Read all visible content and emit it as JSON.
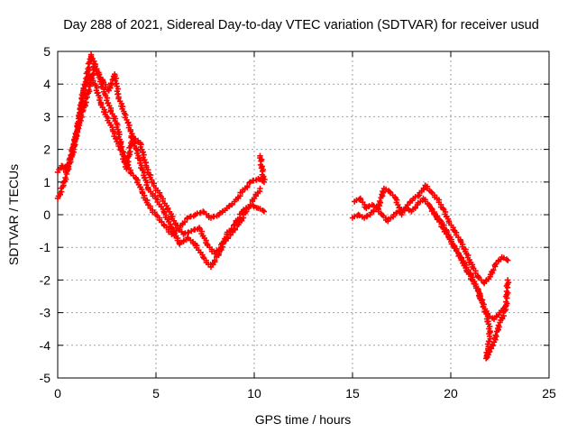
{
  "chart_data": {
    "type": "scatter",
    "title": "Day 288 of 2021, Sidereal Day-to-day VTEC variation (SDTVAR) for receiver usud",
    "xlabel": "GPS time / hours",
    "ylabel": "SDTVAR / TECUs",
    "xlim": [
      0,
      25
    ],
    "ylim": [
      -5,
      5
    ],
    "xticks": [
      0,
      5,
      10,
      15,
      20,
      25
    ],
    "yticks": [
      -5,
      -4,
      -3,
      -2,
      -1,
      0,
      1,
      2,
      3,
      4,
      5
    ],
    "grid": true,
    "marker": "plus",
    "series_color": "#ff0000",
    "series": [
      {
        "name": "track-a",
        "points": [
          [
            0.0,
            0.5
          ],
          [
            0.3,
            0.9
          ],
          [
            0.6,
            1.6
          ],
          [
            0.9,
            2.3
          ],
          [
            1.1,
            2.8
          ],
          [
            1.3,
            3.2
          ],
          [
            1.5,
            3.6
          ],
          [
            1.7,
            4.1
          ],
          [
            1.9,
            4.6
          ],
          [
            2.1,
            4.2
          ],
          [
            2.4,
            3.7
          ],
          [
            2.7,
            3.2
          ],
          [
            3.0,
            2.8
          ],
          [
            3.2,
            2.2
          ],
          [
            3.4,
            1.6
          ],
          [
            3.5,
            1.4
          ],
          [
            3.8,
            2.4
          ],
          [
            4.2,
            2.2
          ],
          [
            4.5,
            1.5
          ],
          [
            4.8,
            1.0
          ],
          [
            5.2,
            0.6
          ],
          [
            5.6,
            0.2
          ],
          [
            6.0,
            -0.3
          ],
          [
            6.4,
            -0.6
          ],
          [
            6.8,
            -0.5
          ],
          [
            7.2,
            -0.4
          ],
          [
            7.6,
            -0.9
          ],
          [
            8.0,
            -1.2
          ],
          [
            8.4,
            -0.9
          ],
          [
            8.8,
            -0.6
          ],
          [
            9.2,
            -0.3
          ],
          [
            9.6,
            0.1
          ],
          [
            10.0,
            0.5
          ],
          [
            10.3,
            0.8
          ]
        ]
      },
      {
        "name": "track-b",
        "points": [
          [
            0.0,
            1.3
          ],
          [
            0.2,
            1.5
          ],
          [
            0.5,
            1.4
          ],
          [
            0.8,
            2.0
          ],
          [
            1.1,
            3.0
          ],
          [
            1.4,
            4.0
          ],
          [
            1.7,
            4.9
          ],
          [
            2.0,
            4.4
          ],
          [
            2.3,
            4.1
          ],
          [
            2.6,
            3.8
          ],
          [
            2.9,
            4.3
          ],
          [
            3.1,
            3.6
          ],
          [
            3.4,
            3.1
          ],
          [
            3.7,
            2.6
          ],
          [
            4.0,
            2.0
          ],
          [
            4.3,
            1.4
          ],
          [
            4.6,
            0.8
          ],
          [
            5.0,
            0.5
          ],
          [
            5.4,
            0.1
          ],
          [
            5.8,
            -0.4
          ],
          [
            6.2,
            -0.9
          ],
          [
            6.6,
            -0.7
          ],
          [
            7.0,
            -0.9
          ],
          [
            7.4,
            -1.3
          ],
          [
            7.8,
            -1.6
          ],
          [
            8.2,
            -1.2
          ],
          [
            8.6,
            -0.6
          ],
          [
            9.0,
            -0.3
          ],
          [
            9.4,
            0.1
          ],
          [
            9.8,
            0.3
          ],
          [
            10.2,
            0.2
          ],
          [
            10.5,
            0.1
          ]
        ]
      },
      {
        "name": "track-c",
        "points": [
          [
            0.3,
            1.4
          ],
          [
            0.6,
            1.6
          ],
          [
            1.0,
            2.6
          ],
          [
            1.3,
            3.8
          ],
          [
            1.6,
            4.3
          ],
          [
            1.9,
            4.0
          ],
          [
            2.2,
            3.4
          ],
          [
            2.5,
            3.0
          ],
          [
            2.8,
            2.6
          ],
          [
            3.1,
            2.1
          ],
          [
            3.4,
            1.8
          ],
          [
            3.7,
            1.3
          ],
          [
            4.0,
            1.1
          ],
          [
            4.3,
            0.7
          ],
          [
            4.6,
            0.3
          ],
          [
            5.0,
            0.0
          ],
          [
            5.4,
            -0.3
          ],
          [
            5.8,
            -0.6
          ],
          [
            6.2,
            -0.4
          ],
          [
            6.6,
            -0.1
          ],
          [
            7.0,
            0.0
          ],
          [
            7.4,
            0.1
          ],
          [
            7.8,
            -0.1
          ],
          [
            8.2,
            0.0
          ],
          [
            8.6,
            0.2
          ],
          [
            9.0,
            0.4
          ],
          [
            9.4,
            0.7
          ],
          [
            9.8,
            1.0
          ],
          [
            10.2,
            1.1
          ],
          [
            10.5,
            1.0
          ],
          [
            10.3,
            1.8
          ]
        ]
      },
      {
        "name": "track-d",
        "points": [
          [
            15.1,
            0.4
          ],
          [
            15.4,
            0.5
          ],
          [
            15.7,
            0.2
          ],
          [
            16.0,
            0.3
          ],
          [
            16.3,
            0.2
          ],
          [
            16.6,
            0.8
          ],
          [
            16.9,
            0.7
          ],
          [
            17.2,
            0.5
          ],
          [
            17.5,
            0.0
          ],
          [
            17.8,
            0.3
          ],
          [
            18.1,
            0.5
          ],
          [
            18.4,
            0.6
          ],
          [
            18.7,
            0.9
          ],
          [
            19.0,
            0.7
          ],
          [
            19.3,
            0.5
          ],
          [
            19.6,
            0.2
          ],
          [
            19.9,
            -0.2
          ],
          [
            20.2,
            -0.5
          ],
          [
            20.5,
            -0.8
          ],
          [
            20.8,
            -1.2
          ],
          [
            21.1,
            -1.6
          ],
          [
            21.4,
            -1.9
          ],
          [
            21.7,
            -2.1
          ],
          [
            22.0,
            -1.9
          ],
          [
            22.3,
            -1.5
          ],
          [
            22.6,
            -1.3
          ],
          [
            22.9,
            -1.4
          ]
        ]
      },
      {
        "name": "track-e",
        "points": [
          [
            15.0,
            -0.1
          ],
          [
            15.3,
            0.0
          ],
          [
            15.6,
            -0.1
          ],
          [
            15.9,
            0.0
          ],
          [
            16.2,
            0.2
          ],
          [
            16.5,
            0.0
          ],
          [
            16.8,
            -0.2
          ],
          [
            17.1,
            0.0
          ],
          [
            17.4,
            0.1
          ],
          [
            17.7,
            0.2
          ],
          [
            18.0,
            0.1
          ],
          [
            18.3,
            0.3
          ],
          [
            18.6,
            0.5
          ],
          [
            18.9,
            0.3
          ],
          [
            19.2,
            0.0
          ],
          [
            19.5,
            -0.2
          ],
          [
            19.8,
            -0.5
          ],
          [
            20.1,
            -0.9
          ],
          [
            20.4,
            -1.2
          ],
          [
            20.7,
            -1.5
          ],
          [
            21.0,
            -1.8
          ],
          [
            21.3,
            -2.2
          ],
          [
            21.6,
            -2.7
          ],
          [
            21.9,
            -3.1
          ],
          [
            22.2,
            -3.2
          ],
          [
            22.5,
            -3.0
          ],
          [
            22.8,
            -2.8
          ]
        ]
      },
      {
        "name": "track-f",
        "points": [
          [
            19.0,
            0.2
          ],
          [
            19.3,
            -0.1
          ],
          [
            19.6,
            -0.4
          ],
          [
            19.9,
            -0.7
          ],
          [
            20.2,
            -1.0
          ],
          [
            20.5,
            -1.3
          ],
          [
            20.8,
            -1.7
          ],
          [
            21.1,
            -2.0
          ],
          [
            21.4,
            -2.3
          ],
          [
            21.6,
            -2.7
          ],
          [
            21.8,
            -3.0
          ],
          [
            22.0,
            -3.6
          ],
          [
            21.9,
            -4.1
          ],
          [
            21.8,
            -4.4
          ],
          [
            22.2,
            -3.9
          ],
          [
            22.5,
            -3.3
          ],
          [
            22.8,
            -2.9
          ],
          [
            22.9,
            -2.0
          ]
        ]
      }
    ]
  }
}
